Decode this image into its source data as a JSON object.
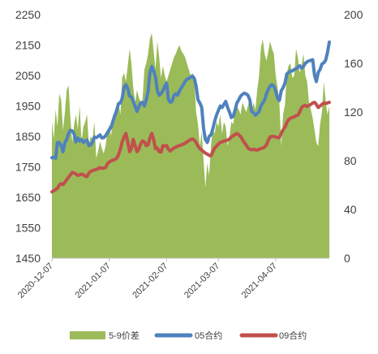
{
  "chart_data": {
    "type": "line",
    "title": "",
    "xlabel": "",
    "ylabel_left": "",
    "ylabel_right": "",
    "y_left_lim": [
      1450,
      2250
    ],
    "y_left_ticks": [
      "1450",
      "1550",
      "1650",
      "1750",
      "1850",
      "1950",
      "2050",
      "2150",
      "2250"
    ],
    "y_right_lim": [
      0,
      200
    ],
    "y_right_ticks": [
      "0",
      "40",
      "80",
      "120",
      "160",
      "200"
    ],
    "x_ticks": [
      "2020-12-07",
      "2021-01-07",
      "2021-02-07",
      "2021-03-07",
      "2021-04-07"
    ],
    "x_tick_index": [
      0,
      31,
      62,
      90,
      121
    ],
    "x_range": [
      0,
      150
    ],
    "grid": false,
    "legend_position": "bottom",
    "colors": {
      "spread": "#9bbb59",
      "c05": "#4f81bd",
      "c09": "#c0504d"
    },
    "series": [
      {
        "name": "5-9价差",
        "axis": "right",
        "kind": "area",
        "x": [
          0,
          1,
          2,
          3,
          4,
          5,
          6,
          7,
          8,
          9,
          10,
          11,
          12,
          13,
          14,
          15,
          16,
          17,
          18,
          19,
          20,
          21,
          22,
          23,
          24,
          25,
          26,
          27,
          28,
          29,
          30,
          31,
          32,
          33,
          34,
          35,
          36,
          37,
          38,
          39,
          40,
          41,
          42,
          43,
          44,
          45,
          46,
          47,
          48,
          49,
          50,
          51,
          52,
          53,
          54,
          55,
          56,
          57,
          58,
          59,
          60,
          61,
          62,
          63,
          64,
          65,
          66,
          67,
          68,
          69,
          70,
          71,
          72,
          73,
          74,
          75,
          76,
          77,
          78,
          79,
          80,
          81,
          82,
          83,
          84,
          85,
          86,
          87,
          88,
          89,
          90,
          91,
          92,
          93,
          94,
          95,
          96,
          97,
          98,
          99,
          100,
          101,
          102,
          103,
          104,
          105,
          106,
          107,
          108,
          109,
          110,
          111,
          112,
          113,
          114,
          115,
          116,
          117,
          118,
          119,
          120,
          121,
          122,
          123,
          124,
          125,
          126,
          127,
          128,
          129,
          130,
          131,
          132,
          133,
          134,
          135,
          136,
          137,
          138,
          139,
          140,
          141,
          142,
          143,
          144,
          145,
          146,
          147,
          148,
          149,
          150
        ],
        "values": [
          112,
          98,
          122,
          108,
          135,
          130,
          105,
          120,
          138,
          142,
          115,
          95,
          110,
          118,
          106,
          125,
          96,
          108,
          112,
          118,
          92,
          100,
          98,
          112,
          82,
          88,
          96,
          90,
          86,
          92,
          104,
          110,
          100,
          118,
          112,
          122,
          128,
          118,
          148,
          152,
          145,
          158,
          172,
          160,
          140,
          128,
          138,
          132,
          128,
          130,
          155,
          160,
          168,
          180,
          185,
          170,
          155,
          178,
          165,
          148,
          158,
          150,
          145,
          150,
          155,
          160,
          165,
          168,
          172,
          175,
          170,
          168,
          165,
          160,
          155,
          150,
          152,
          145,
          120,
          110,
          92,
          104,
          80,
          58,
          78,
          68,
          92,
          108,
          102,
          112,
          108,
          118,
          102,
          112,
          108,
          92,
          100,
          112,
          110,
          120,
          125,
          122,
          118,
          128,
          124,
          120,
          125,
          132,
          118,
          128,
          122,
          138,
          150,
          172,
          180,
          168,
          162,
          170,
          178,
          172,
          168,
          150,
          140,
          128,
          92,
          118,
          126,
          152,
          158,
          160,
          148,
          150,
          172,
          165,
          152,
          158,
          168,
          150,
          145,
          128,
          122,
          115,
          105,
          95,
          92,
          110,
          120,
          145,
          130,
          118,
          125
        ]
      },
      {
        "name": "05合约",
        "axis": "left",
        "kind": "line",
        "x": [
          0,
          1,
          2,
          3,
          4,
          5,
          6,
          7,
          8,
          9,
          10,
          11,
          12,
          13,
          14,
          15,
          16,
          17,
          18,
          19,
          20,
          21,
          22,
          23,
          24,
          25,
          26,
          27,
          28,
          29,
          30,
          31,
          32,
          33,
          34,
          35,
          36,
          37,
          38,
          39,
          40,
          41,
          42,
          43,
          44,
          45,
          46,
          47,
          48,
          49,
          50,
          51,
          52,
          53,
          54,
          55,
          56,
          57,
          58,
          59,
          60,
          61,
          62,
          63,
          64,
          65,
          66,
          67,
          68,
          69,
          70,
          71,
          72,
          73,
          74,
          75,
          76,
          77,
          78,
          79,
          80,
          81,
          82,
          83,
          84,
          85,
          86,
          87,
          88,
          89,
          90,
          91,
          92,
          93,
          94,
          95,
          96,
          97,
          98,
          99,
          100,
          101,
          102,
          103,
          104,
          105,
          106,
          107,
          108,
          109,
          110,
          111,
          112,
          113,
          114,
          115,
          116,
          117,
          118,
          119,
          120,
          121,
          122,
          123,
          124,
          125,
          126,
          127,
          128,
          129,
          130,
          131,
          132,
          133,
          134,
          135,
          136,
          137,
          138,
          139,
          140,
          141,
          142,
          143,
          144,
          145,
          146,
          147,
          148,
          149,
          150
        ],
        "values": [
          1780,
          1782,
          1778,
          1830,
          1830,
          1820,
          1800,
          1830,
          1840,
          1860,
          1870,
          1868,
          1858,
          1832,
          1845,
          1835,
          1840,
          1830,
          1835,
          1838,
          1820,
          1822,
          1832,
          1848,
          1846,
          1850,
          1855,
          1845,
          1846,
          1852,
          1862,
          1872,
          1880,
          1900,
          1918,
          1935,
          1958,
          1960,
          1975,
          2010,
          2020,
          2008,
          1982,
          1980,
          1965,
          1948,
          1932,
          1948,
          1960,
          1962,
          1950,
          1970,
          1998,
          2060,
          2080,
          2065,
          2045,
          2000,
          1985,
          1990,
          2000,
          2015,
          2025,
          1972,
          1962,
          1965,
          1985,
          1990,
          1985,
          2000,
          2010,
          2020,
          2030,
          2038,
          2040,
          2045,
          2048,
          2040,
          2015,
          1970,
          1960,
          1945,
          1875,
          1840,
          1830,
          1850,
          1855,
          1875,
          1900,
          1920,
          1935,
          1950,
          1945,
          1955,
          1965,
          1945,
          1930,
          1912,
          1915,
          1935,
          1960,
          1970,
          1982,
          1988,
          1992,
          1990,
          1985,
          1970,
          1932,
          1928,
          1920,
          1925,
          1932,
          1950,
          1960,
          1970,
          1990,
          2005,
          2015,
          2020,
          2015,
          2000,
          1975,
          1968,
          2000,
          2010,
          2025,
          2055,
          2060,
          2065,
          2065,
          2070,
          2072,
          2078,
          2082,
          2074,
          2080,
          2090,
          2095,
          2098,
          2100,
          2102,
          2050,
          2030,
          2060,
          2070,
          2088,
          2092,
          2100,
          2125,
          2160
        ]
      },
      {
        "name": "09合约",
        "axis": "left",
        "kind": "line",
        "x": [
          0,
          1,
          2,
          3,
          4,
          5,
          6,
          7,
          8,
          9,
          10,
          11,
          12,
          13,
          14,
          15,
          16,
          17,
          18,
          19,
          20,
          21,
          22,
          23,
          24,
          25,
          26,
          27,
          28,
          29,
          30,
          31,
          32,
          33,
          34,
          35,
          36,
          37,
          38,
          39,
          40,
          41,
          42,
          43,
          44,
          45,
          46,
          47,
          48,
          49,
          50,
          51,
          52,
          53,
          54,
          55,
          56,
          57,
          58,
          59,
          60,
          61,
          62,
          63,
          64,
          65,
          66,
          67,
          68,
          69,
          70,
          71,
          72,
          73,
          74,
          75,
          76,
          77,
          78,
          79,
          80,
          81,
          82,
          83,
          84,
          85,
          86,
          87,
          88,
          89,
          90,
          91,
          92,
          93,
          94,
          95,
          96,
          97,
          98,
          99,
          100,
          101,
          102,
          103,
          104,
          105,
          106,
          107,
          108,
          109,
          110,
          111,
          112,
          113,
          114,
          115,
          116,
          117,
          118,
          119,
          120,
          121,
          122,
          123,
          124,
          125,
          126,
          127,
          128,
          129,
          130,
          131,
          132,
          133,
          134,
          135,
          136,
          137,
          138,
          139,
          140,
          141,
          142,
          143,
          144,
          145,
          146,
          147,
          148,
          149,
          150
        ],
        "values": [
          1668,
          1672,
          1675,
          1680,
          1690,
          1695,
          1692,
          1700,
          1708,
          1716,
          1724,
          1732,
          1730,
          1726,
          1722,
          1724,
          1726,
          1724,
          1720,
          1718,
          1730,
          1735,
          1738,
          1740,
          1742,
          1744,
          1748,
          1745,
          1746,
          1748,
          1760,
          1766,
          1770,
          1772,
          1774,
          1778,
          1790,
          1808,
          1832,
          1848,
          1860,
          1832,
          1800,
          1810,
          1840,
          1820,
          1800,
          1808,
          1825,
          1835,
          1832,
          1820,
          1822,
          1845,
          1860,
          1840,
          1810,
          1812,
          1800,
          1798,
          1820,
          1818,
          1820,
          1808,
          1802,
          1808,
          1812,
          1815,
          1818,
          1820,
          1822,
          1825,
          1828,
          1832,
          1836,
          1840,
          1842,
          1838,
          1830,
          1818,
          1810,
          1805,
          1800,
          1795,
          1792,
          1788,
          1786,
          1800,
          1812,
          1818,
          1825,
          1830,
          1832,
          1835,
          1836,
          1838,
          1842,
          1848,
          1852,
          1856,
          1860,
          1855,
          1850,
          1840,
          1830,
          1822,
          1812,
          1808,
          1806,
          1808,
          1806,
          1805,
          1808,
          1810,
          1812,
          1815,
          1822,
          1838,
          1848,
          1850,
          1850,
          1848,
          1846,
          1846,
          1860,
          1872,
          1880,
          1895,
          1905,
          1910,
          1912,
          1914,
          1918,
          1920,
          1930,
          1945,
          1950,
          1952,
          1948,
          1952,
          1955,
          1960,
          1962,
          1955,
          1945,
          1950,
          1955,
          1960,
          1958,
          1960,
          1962
        ]
      }
    ]
  },
  "legend": {
    "items": [
      {
        "label": "5-9价差"
      },
      {
        "label": "05合约"
      },
      {
        "label": "09合约"
      }
    ]
  }
}
